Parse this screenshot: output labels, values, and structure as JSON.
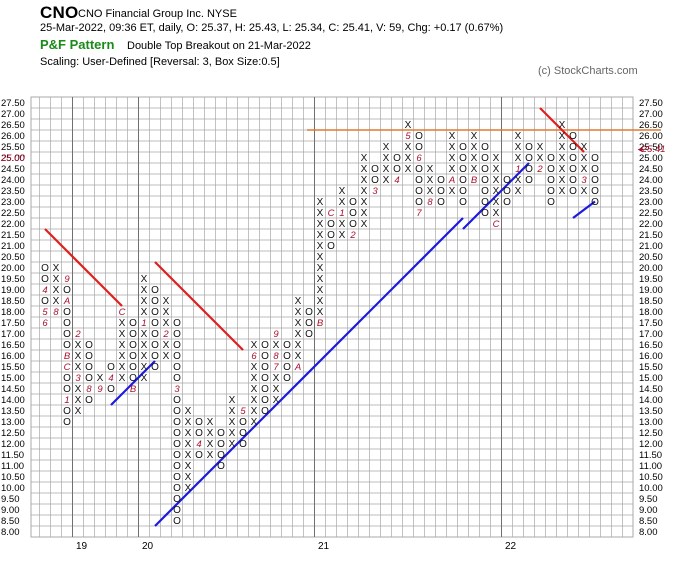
{
  "header": {
    "symbol": "CNO",
    "company": "CNO Financial Group Inc.  NYSE",
    "quote": "25-Mar-2022, 09:36 ET, daily, O: 25.37, H: 25.43, L: 25.34, C: 25.41, V: 59, Chg: +0.17 (0.67%)",
    "chart_title": "P&F Pattern",
    "pattern": "Double Top Breakout on 21-Mar-2022",
    "scaling": "Scaling: User-Defined [Reversal: 3, Box Size:0.5]",
    "copyright": "(c) StockCharts.com"
  },
  "colors": {
    "grid": "#a8a8a8",
    "resistance": "#e02020",
    "support": "#1a1ae0",
    "horizontal": "#e07a30",
    "month_marker": "#aa1030",
    "price_marker": "#aa1030",
    "title_green": "#1a8a1a"
  },
  "chart_data": {
    "type": "point-and-figure",
    "box_size": 0.5,
    "reversal": 3,
    "ylim": [
      8.0,
      27.5
    ],
    "y_ticks": [
      "8.00",
      "8.50",
      "9.00",
      "9.50",
      "10.00",
      "10.50",
      "11.00",
      "11.50",
      "12.00",
      "12.50",
      "13.00",
      "13.50",
      "14.00",
      "14.50",
      "15.00",
      "15.50",
      "16.00",
      "16.50",
      "17.00",
      "17.50",
      "18.00",
      "18.50",
      "19.00",
      "19.50",
      "20.00",
      "20.50",
      "21.00",
      "21.50",
      "22.00",
      "22.50",
      "23.00",
      "23.50",
      "24.00",
      "24.50",
      "25.00",
      "25.50",
      "26.00",
      "26.50",
      "27.00",
      "27.50"
    ],
    "x_labels": [
      {
        "col": 3,
        "text": "19"
      },
      {
        "col": 9,
        "text": "20"
      },
      {
        "col": 25,
        "text": "21"
      },
      {
        "col": 42,
        "text": "22"
      }
    ],
    "current_price": "25.41",
    "current_price_label": "25.00",
    "columns": [
      {
        "type": "O",
        "top": 20.0,
        "bottom": 17.5,
        "markers": {
          "19.0": "4",
          "18.0": "5",
          "17.5": "6"
        }
      },
      {
        "type": "X",
        "top": 20.0,
        "bottom": 18.0,
        "markers": {
          "18.0": "8"
        }
      },
      {
        "type": "O",
        "top": 19.5,
        "bottom": 13.0,
        "markers": {
          "19.5": "9",
          "18.5": "A",
          "16.0": "B",
          "15.5": "C",
          "14.0": "1"
        }
      },
      {
        "type": "X",
        "top": 17.0,
        "bottom": 13.5,
        "markers": {
          "17.0": "2",
          "15.0": "3"
        }
      },
      {
        "type": "O",
        "top": 16.5,
        "bottom": 14.0,
        "markers": {
          "14.5": "8"
        }
      },
      {
        "type": "X",
        "top": 15.0,
        "bottom": 14.5,
        "markers": {
          "14.5": "9"
        }
      },
      {
        "type": "O",
        "top": 15.5,
        "bottom": 14.5,
        "markers": {
          "15.0": "4"
        }
      },
      {
        "type": "X",
        "top": 18.0,
        "bottom": 15.0,
        "markers": {
          "18.0": "C"
        }
      },
      {
        "type": "O",
        "top": 17.5,
        "bottom": 14.5,
        "markers": {
          "14.5": "B"
        }
      },
      {
        "type": "X",
        "top": 19.5,
        "bottom": 15.0,
        "markers": {
          "17.5": "1"
        }
      },
      {
        "type": "O",
        "top": 19.0,
        "bottom": 15.5,
        "markers": {}
      },
      {
        "type": "X",
        "top": 18.5,
        "bottom": 16.0,
        "markers": {
          "17.0": "2"
        }
      },
      {
        "type": "O",
        "top": 17.5,
        "bottom": 8.5,
        "markers": {
          "14.5": "3"
        }
      },
      {
        "type": "X",
        "top": 13.5,
        "bottom": 10.0,
        "markers": {}
      },
      {
        "type": "O",
        "top": 13.0,
        "bottom": 11.5,
        "markers": {
          "12.0": "4"
        }
      },
      {
        "type": "X",
        "top": 13.0,
        "bottom": 11.5,
        "markers": {}
      },
      {
        "type": "O",
        "top": 12.5,
        "bottom": 11.0,
        "markers": {}
      },
      {
        "type": "X",
        "top": 14.0,
        "bottom": 12.0,
        "markers": {}
      },
      {
        "type": "O",
        "top": 13.5,
        "bottom": 12.0,
        "markers": {
          "13.5": "5"
        }
      },
      {
        "type": "X",
        "top": 16.5,
        "bottom": 13.0,
        "markers": {
          "16.0": "6"
        }
      },
      {
        "type": "O",
        "top": 16.5,
        "bottom": 13.5,
        "markers": {}
      },
      {
        "type": "X",
        "top": 17.0,
        "bottom": 14.0,
        "markers": {
          "17.0": "9",
          "16.0": "8",
          "15.5": "7"
        }
      },
      {
        "type": "O",
        "top": 16.5,
        "bottom": 15.0,
        "markers": {}
      },
      {
        "type": "X",
        "top": 18.5,
        "bottom": 15.5,
        "markers": {
          "15.5": "A"
        }
      },
      {
        "type": "O",
        "top": 18.0,
        "bottom": 17.0,
        "markers": {}
      },
      {
        "type": "X",
        "top": 23.0,
        "bottom": 17.5,
        "markers": {
          "17.5": "B"
        }
      },
      {
        "type": "O",
        "top": 22.5,
        "bottom": 21.0,
        "markers": {
          "22.5": "C"
        }
      },
      {
        "type": "X",
        "top": 23.5,
        "bottom": 21.5,
        "markers": {
          "22.5": "1"
        }
      },
      {
        "type": "O",
        "top": 23.0,
        "bottom": 21.5,
        "markers": {
          "21.5": "2"
        }
      },
      {
        "type": "X",
        "top": 25.0,
        "bottom": 22.0,
        "markers": {}
      },
      {
        "type": "O",
        "top": 24.5,
        "bottom": 23.5,
        "markers": {
          "23.5": "3"
        }
      },
      {
        "type": "X",
        "top": 25.5,
        "bottom": 24.0,
        "markers": {}
      },
      {
        "type": "O",
        "top": 25.0,
        "bottom": 24.0,
        "markers": {
          "24.0": "4"
        }
      },
      {
        "type": "X",
        "top": 26.5,
        "bottom": 24.5,
        "markers": {
          "26.0": "5"
        }
      },
      {
        "type": "O",
        "top": 26.0,
        "bottom": 22.5,
        "markers": {
          "25.0": "6",
          "22.5": "7"
        }
      },
      {
        "type": "X",
        "top": 24.5,
        "bottom": 23.0,
        "markers": {
          "23.0": "8"
        }
      },
      {
        "type": "O",
        "top": 24.0,
        "bottom": 23.0,
        "markers": {}
      },
      {
        "type": "X",
        "top": 26.0,
        "bottom": 23.5,
        "markers": {
          "24.0": "A"
        }
      },
      {
        "type": "O",
        "top": 25.5,
        "bottom": 23.0,
        "markers": {}
      },
      {
        "type": "X",
        "top": 26.0,
        "bottom": 24.0,
        "markers": {
          "24.0": "B"
        }
      },
      {
        "type": "O",
        "top": 25.5,
        "bottom": 22.5,
        "markers": {}
      },
      {
        "type": "X",
        "top": 25.0,
        "bottom": 22.0,
        "markers": {
          "22.0": "C"
        }
      },
      {
        "type": "O",
        "top": 24.0,
        "bottom": 23.0,
        "markers": {}
      },
      {
        "type": "X",
        "top": 26.0,
        "bottom": 23.5,
        "markers": {
          "24.5": "1"
        }
      },
      {
        "type": "O",
        "top": 25.5,
        "bottom": 24.0,
        "markers": {}
      },
      {
        "type": "X",
        "top": 25.5,
        "bottom": 24.5,
        "markers": {
          "24.5": "2"
        }
      },
      {
        "type": "O",
        "top": 25.0,
        "bottom": 23.0,
        "markers": {}
      },
      {
        "type": "X",
        "top": 26.5,
        "bottom": 23.5,
        "markers": {}
      },
      {
        "type": "O",
        "top": 26.0,
        "bottom": 23.5,
        "markers": {}
      },
      {
        "type": "X",
        "top": 25.5,
        "bottom": 23.5,
        "markers": {
          "24.0": "3"
        }
      },
      {
        "type": "O",
        "top": 25.0,
        "bottom": 23.0,
        "markers": {}
      }
    ],
    "trendlines": [
      {
        "kind": "resistance",
        "from": {
          "col": 0,
          "price": 21.75
        },
        "to": {
          "col": 7,
          "price": 18.25
        }
      },
      {
        "kind": "resistance",
        "from": {
          "col": 10,
          "price": 20.25
        },
        "to": {
          "col": 18,
          "price": 16.25
        }
      },
      {
        "kind": "resistance",
        "from": {
          "col": 45,
          "price": 27.25
        },
        "to": {
          "col": 49,
          "price": 25.25
        }
      },
      {
        "kind": "support",
        "from": {
          "col": 6,
          "price": 13.75
        },
        "to": {
          "col": 10,
          "price": 15.75
        }
      },
      {
        "kind": "support",
        "from": {
          "col": 10,
          "price": 8.25
        },
        "to": {
          "col": 38,
          "price": 22.25
        }
      },
      {
        "kind": "support",
        "from": {
          "col": 38,
          "price": 21.75
        },
        "to": {
          "col": 39,
          "price": 22.25
        }
      },
      {
        "kind": "support",
        "from": {
          "col": 39,
          "price": 22.25
        },
        "to": {
          "col": 44,
          "price": 24.75
        }
      },
      {
        "kind": "support",
        "from": {
          "col": 48,
          "price": 22.25
        },
        "to": {
          "col": 50,
          "price": 23.0
        }
      }
    ],
    "horizontal_line": {
      "price": 26.25,
      "from_col": 24,
      "to_col": 56
    }
  }
}
